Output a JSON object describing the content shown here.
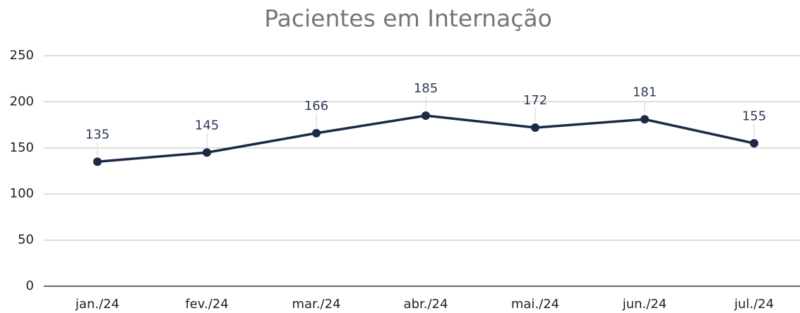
{
  "chart_data": {
    "type": "line",
    "title": "Pacientes em Internação",
    "categories": [
      "jan./24",
      "fev./24",
      "mar./24",
      "abr./24",
      "mai./24",
      "jun./24",
      "jul./24"
    ],
    "series": [
      {
        "name": "Pacientes",
        "color": "#1b2a47",
        "values": [
          135,
          145,
          166,
          185,
          172,
          181,
          155
        ]
      }
    ],
    "ylim": [
      0,
      250
    ],
    "yticks": [
      0,
      50,
      100,
      150,
      200,
      250
    ],
    "grid": true
  }
}
